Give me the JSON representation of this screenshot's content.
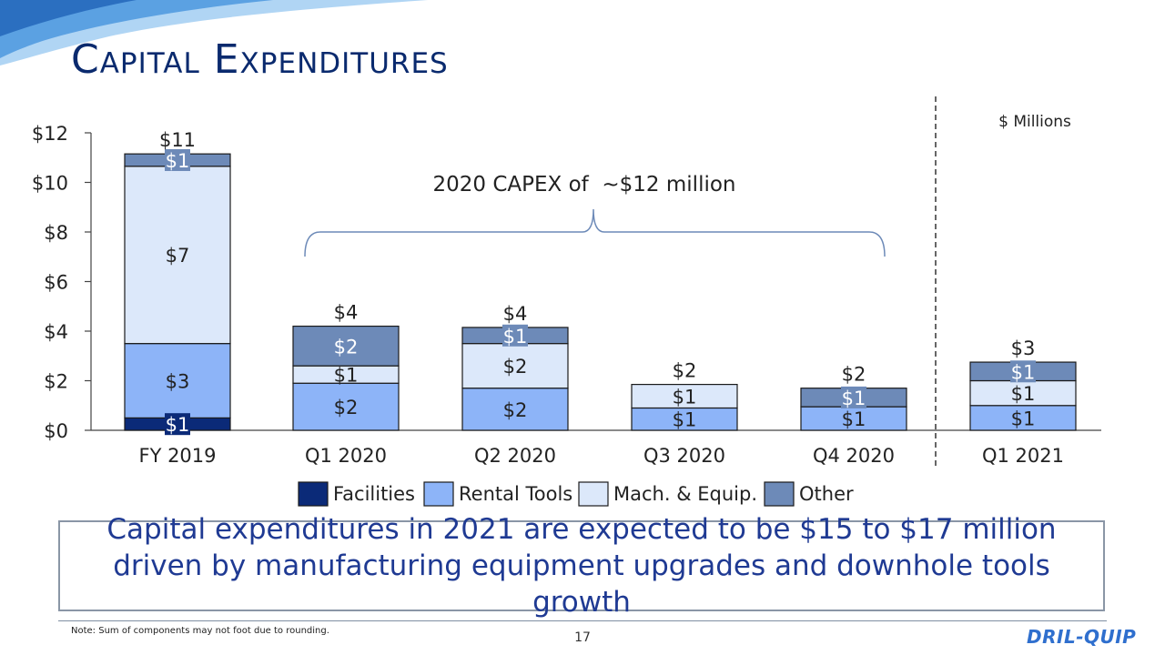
{
  "title": "Capital Expenditures",
  "unit_note": "$ Millions",
  "brace_label": "2020 CAPEX of  ~$12 million",
  "callout": "Capital expenditures in 2021 are expected to be $15 to $17 million driven by manufacturing equipment upgrades and downhole tools growth",
  "footnote": "Note: Sum of components may not foot due to rounding.",
  "page_number": "17",
  "logo_text": "DRIL-QUIP",
  "colors": {
    "Facilities": "#0b2a78",
    "Rental Tools": "#8db4f8",
    "Mach. & Equip.": "#dce8fa",
    "Other": "#6d8ab8",
    "axis_text": "#222222",
    "title": "#0a2a6e"
  },
  "chart_data": {
    "type": "bar",
    "stacked": true,
    "categories": [
      "FY 2019",
      "Q1 2020",
      "Q2 2020",
      "Q3 2020",
      "Q4 2020",
      "Q1 2021"
    ],
    "ylim": [
      0,
      12
    ],
    "yticks": [
      0,
      2,
      4,
      6,
      8,
      10,
      12
    ],
    "ytick_labels": [
      "$0",
      "$2",
      "$4",
      "$6",
      "$8",
      "$10",
      "$12"
    ],
    "series": [
      {
        "name": "Facilities",
        "values": [
          0.5,
          0,
          0,
          0,
          0,
          0
        ],
        "labels": [
          "$1",
          "",
          "",
          "",
          "",
          ""
        ]
      },
      {
        "name": "Rental Tools",
        "values": [
          3.0,
          1.9,
          1.7,
          0.9,
          0.95,
          1.0
        ],
        "labels": [
          "$3",
          "$2",
          "$2",
          "$1",
          "$1",
          "$1"
        ]
      },
      {
        "name": "Mach. & Equip.",
        "values": [
          7.15,
          0.7,
          1.8,
          0.95,
          0,
          1.0
        ],
        "labels": [
          "$7",
          "$1",
          "$2",
          "$1",
          "",
          "$1"
        ]
      },
      {
        "name": "Other",
        "values": [
          0.5,
          1.6,
          0.65,
          0,
          0.75,
          0.75
        ],
        "labels": [
          "$1",
          "$2",
          "$1",
          "",
          "$1",
          "$1"
        ]
      }
    ],
    "totals": [
      11.15,
      4.2,
      4.15,
      1.85,
      1.7,
      2.75
    ],
    "total_labels": [
      "$11",
      "$4",
      "$4",
      "$2",
      "$2",
      "$3"
    ],
    "legend": [
      "Facilities",
      "Rental Tools",
      "Mach. & Equip.",
      "Other"
    ],
    "legend_position": "bottom",
    "grid": false
  }
}
